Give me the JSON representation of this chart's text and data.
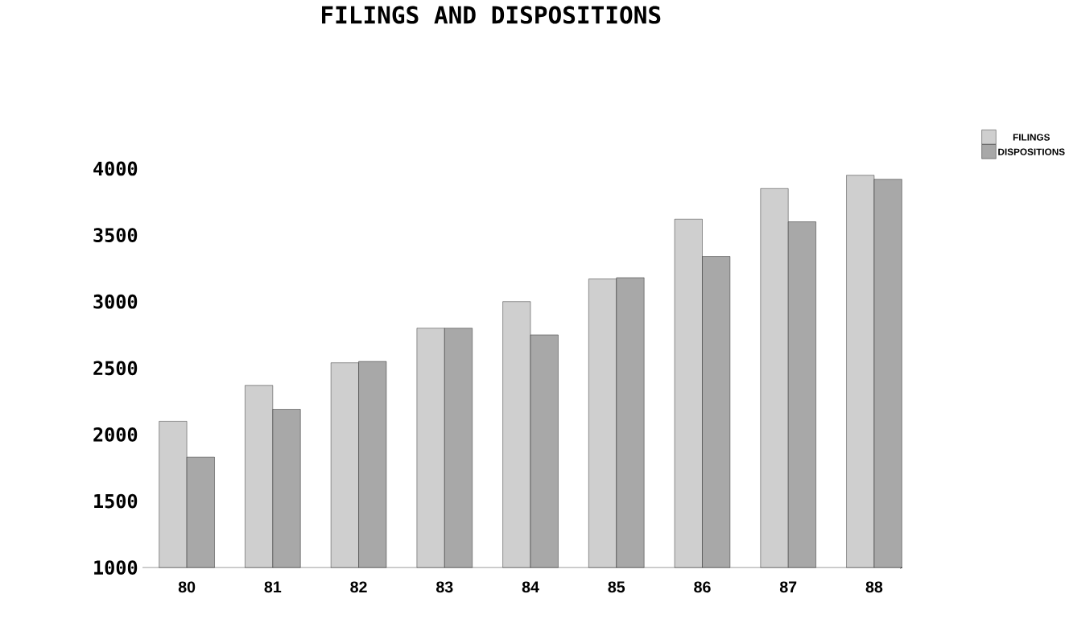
{
  "chart_data": {
    "type": "bar",
    "title": "FILINGS AND DISPOSITIONS",
    "categories": [
      "80",
      "81",
      "82",
      "83",
      "84",
      "85",
      "86",
      "87",
      "88"
    ],
    "series": [
      {
        "name": "FILINGS",
        "color": "#cfcfcf",
        "values": [
          2100,
          2370,
          2540,
          2800,
          3000,
          3170,
          3620,
          3850,
          3950
        ]
      },
      {
        "name": "DISPOSITIONS",
        "color": "#a8a8a8",
        "values": [
          1830,
          2190,
          2550,
          2800,
          2750,
          3180,
          3340,
          3600,
          3920
        ]
      }
    ],
    "ylim": [
      1000,
      4000
    ],
    "yticks": [
      1000,
      1500,
      2000,
      2500,
      3000,
      3500,
      4000
    ],
    "grid": false,
    "legend": "top right"
  }
}
